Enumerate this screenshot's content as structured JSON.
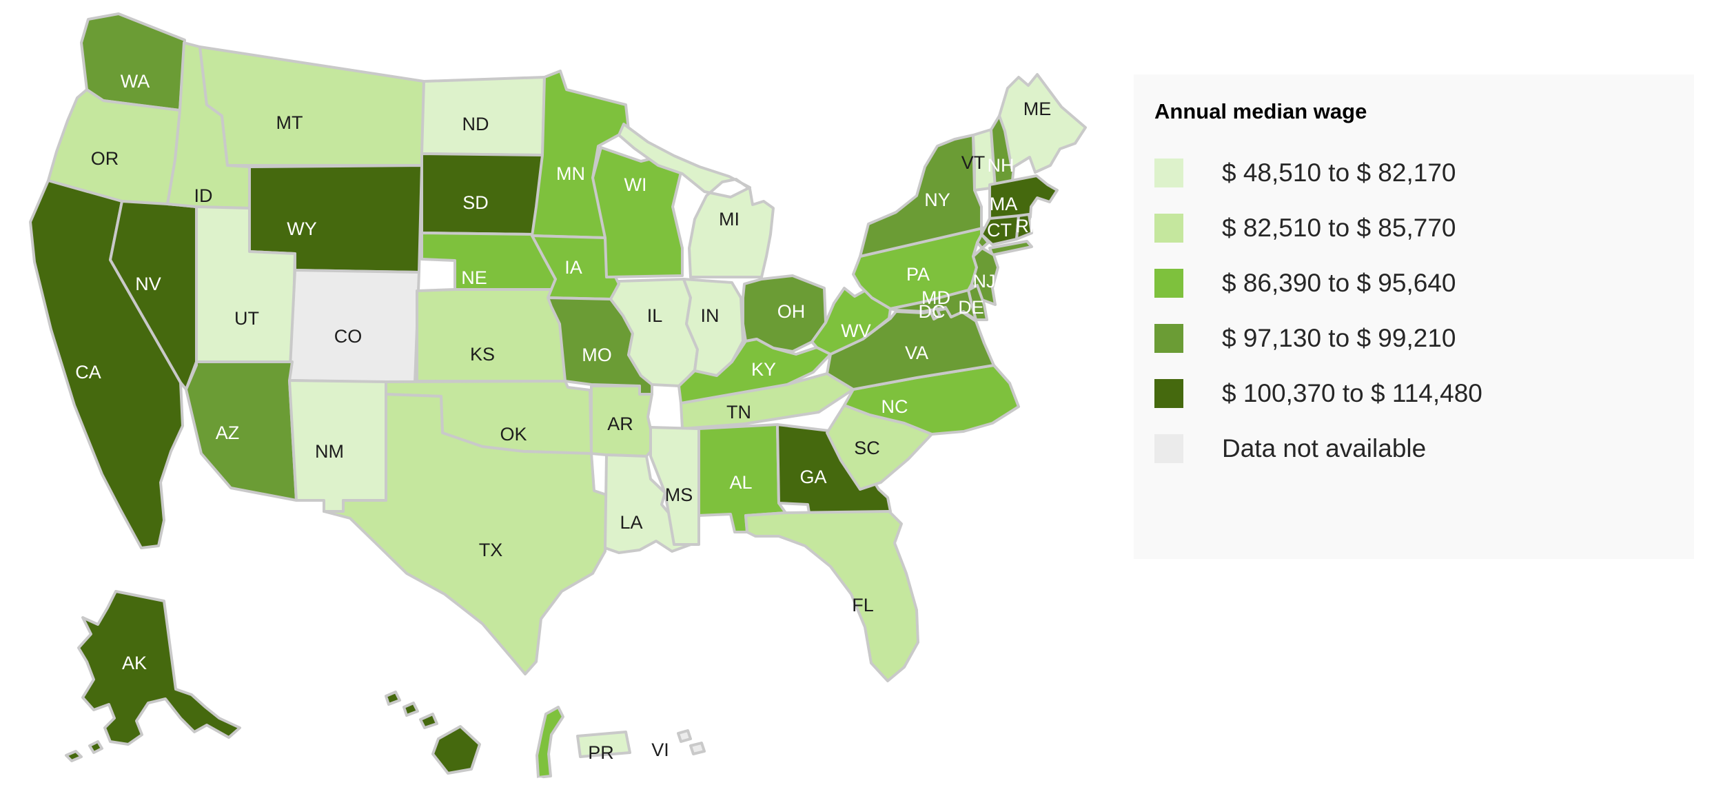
{
  "legend": {
    "title": "Annual median wage",
    "items": [
      {
        "label": "$ 48,510 to $ 82,170",
        "color": "#ddf2cb"
      },
      {
        "label": "$ 82,510 to $ 85,770",
        "color": "#c5e79e"
      },
      {
        "label": "$ 86,390 to $ 95,640",
        "color": "#7ec13d"
      },
      {
        "label": "$ 97,130 to $ 99,210",
        "color": "#6b9c35"
      },
      {
        "label": "$ 100,370 to $ 114,480",
        "color": "#45690e"
      },
      {
        "label": "Data not available",
        "color": "#ebebeb"
      }
    ]
  },
  "map": {
    "border_color": "#c9c9c9",
    "background": "#ffffff",
    "label_on_dark": "#ffffff",
    "label_on_light": "#1d1d1d"
  },
  "chart_data": {
    "type": "heatmap",
    "subtype": "us-state-choropleth",
    "title": "Annual median wage",
    "region": "United States with AK, HI, PR, VI, GU",
    "legend_position": "right",
    "bins": [
      {
        "index": 0,
        "range": [
          48510,
          82170
        ],
        "label": "$ 48,510 to $ 82,170",
        "color": "#ddf2cb"
      },
      {
        "index": 1,
        "range": [
          82510,
          85770
        ],
        "label": "$ 82,510 to $ 85,770",
        "color": "#c5e79e"
      },
      {
        "index": 2,
        "range": [
          86390,
          95640
        ],
        "label": "$ 86,390 to $ 95,640",
        "color": "#7ec13d"
      },
      {
        "index": 3,
        "range": [
          97130,
          99210
        ],
        "label": "$ 97,130 to $ 99,210",
        "color": "#6b9c35"
      },
      {
        "index": 4,
        "range": [
          100370,
          114480
        ],
        "label": "$ 100,370 to $ 114,480",
        "color": "#45690e"
      },
      {
        "index": "na",
        "label": "Data not available",
        "color": "#ebebeb"
      }
    ],
    "states": [
      {
        "code": "WA",
        "bin": 3
      },
      {
        "code": "OR",
        "bin": 1
      },
      {
        "code": "CA",
        "bin": 4
      },
      {
        "code": "NV",
        "bin": 4
      },
      {
        "code": "ID",
        "bin": 1
      },
      {
        "code": "MT",
        "bin": 1
      },
      {
        "code": "WY",
        "bin": 4
      },
      {
        "code": "UT",
        "bin": 0
      },
      {
        "code": "CO",
        "bin": "na"
      },
      {
        "code": "AZ",
        "bin": 3
      },
      {
        "code": "NM",
        "bin": 0
      },
      {
        "code": "ND",
        "bin": 0
      },
      {
        "code": "SD",
        "bin": 4
      },
      {
        "code": "NE",
        "bin": 2
      },
      {
        "code": "KS",
        "bin": 1
      },
      {
        "code": "OK",
        "bin": 1
      },
      {
        "code": "TX",
        "bin": 1
      },
      {
        "code": "MN",
        "bin": 2
      },
      {
        "code": "IA",
        "bin": 2
      },
      {
        "code": "MO",
        "bin": 3
      },
      {
        "code": "WI",
        "bin": 2
      },
      {
        "code": "IL",
        "bin": 0
      },
      {
        "code": "IN",
        "bin": 0
      },
      {
        "code": "MI",
        "bin": 0
      },
      {
        "code": "OH",
        "bin": 3
      },
      {
        "code": "KY",
        "bin": 2
      },
      {
        "code": "TN",
        "bin": 1
      },
      {
        "code": "AR",
        "bin": 1
      },
      {
        "code": "LA",
        "bin": 0
      },
      {
        "code": "MS",
        "bin": 0
      },
      {
        "code": "AL",
        "bin": 2
      },
      {
        "code": "GA",
        "bin": 4
      },
      {
        "code": "FL",
        "bin": 1
      },
      {
        "code": "SC",
        "bin": 1
      },
      {
        "code": "NC",
        "bin": 2
      },
      {
        "code": "VA",
        "bin": 3
      },
      {
        "code": "WV",
        "bin": 2
      },
      {
        "code": "PA",
        "bin": 2
      },
      {
        "code": "NY",
        "bin": 3
      },
      {
        "code": "VT",
        "bin": 0
      },
      {
        "code": "NH",
        "bin": 3
      },
      {
        "code": "ME",
        "bin": 0
      },
      {
        "code": "MA",
        "bin": 4
      },
      {
        "code": "CT",
        "bin": 4
      },
      {
        "code": "RI",
        "bin": 4
      },
      {
        "code": "NJ",
        "bin": 3
      },
      {
        "code": "DE",
        "bin": 3
      },
      {
        "code": "MD",
        "bin": 3
      },
      {
        "code": "DC",
        "bin": 3
      },
      {
        "code": "AK",
        "bin": 4
      },
      {
        "code": "HI",
        "bin": 4
      },
      {
        "code": "PR",
        "bin": 0
      },
      {
        "code": "VI",
        "bin": "na"
      },
      {
        "code": "GU",
        "bin": 2
      }
    ]
  }
}
